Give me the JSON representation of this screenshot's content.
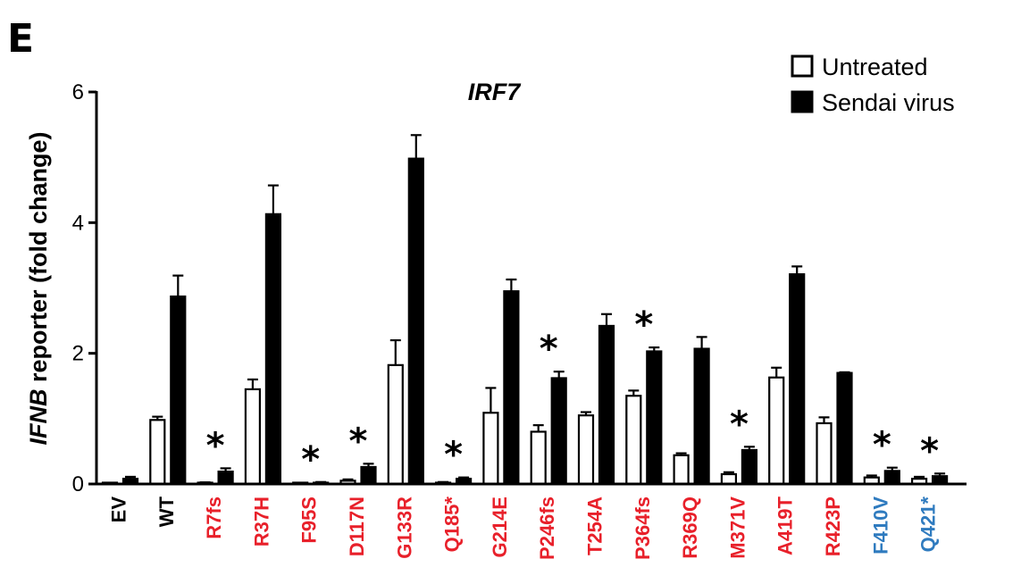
{
  "panel_letter": "E",
  "chart_data": {
    "type": "bar",
    "title": "IRF7",
    "ylabel_italic": "IFNB",
    "ylabel_rest": " reporter (fold change)",
    "ylim": [
      0,
      6
    ],
    "yticks": [
      0,
      2,
      4,
      6
    ],
    "grid": false,
    "legend_position": "top-right",
    "categories": [
      "EV",
      "WT",
      "R7fs",
      "R37H",
      "F95S",
      "D117N",
      "G133R",
      "Q185*",
      "G214E",
      "P246fs",
      "T254A",
      "P364fs",
      "R369Q",
      "M371V",
      "A419T",
      "R423P",
      "F410V",
      "Q421*"
    ],
    "category_colors": [
      "#000000",
      "#000000",
      "#e8202a",
      "#e8202a",
      "#e8202a",
      "#e8202a",
      "#e8202a",
      "#e8202a",
      "#e8202a",
      "#e8202a",
      "#e8202a",
      "#e8202a",
      "#e8202a",
      "#e8202a",
      "#e8202a",
      "#e8202a",
      "#2f7bbf",
      "#2f7bbf"
    ],
    "series": [
      {
        "name": "Untreated",
        "fill": "#ffffff",
        "values": [
          0.01,
          0.98,
          0.02,
          1.45,
          0.01,
          0.05,
          1.82,
          0.02,
          1.09,
          0.8,
          1.05,
          1.35,
          0.44,
          0.15,
          1.63,
          0.93,
          0.1,
          0.08
        ],
        "errors": [
          0.005,
          0.05,
          0.005,
          0.15,
          0.005,
          0.02,
          0.38,
          0.01,
          0.38,
          0.1,
          0.05,
          0.08,
          0.03,
          0.03,
          0.15,
          0.09,
          0.03,
          0.03
        ]
      },
      {
        "name": "Sendai virus",
        "fill": "#000000",
        "values": [
          0.08,
          2.87,
          0.19,
          4.13,
          0.02,
          0.26,
          4.98,
          0.08,
          2.95,
          1.62,
          2.42,
          2.03,
          2.07,
          0.52,
          3.21,
          1.7,
          0.2,
          0.12
        ],
        "errors": [
          0.03,
          0.32,
          0.05,
          0.44,
          0.01,
          0.05,
          0.36,
          0.02,
          0.18,
          0.1,
          0.18,
          0.06,
          0.18,
          0.05,
          0.12,
          0.01,
          0.05,
          0.04
        ]
      }
    ],
    "significance_marks": [
      {
        "category": "R7fs",
        "symbol": "*"
      },
      {
        "category": "F95S",
        "symbol": "*"
      },
      {
        "category": "D117N",
        "symbol": "*"
      },
      {
        "category": "Q185*",
        "symbol": "*"
      },
      {
        "category": "P246fs",
        "symbol": "*"
      },
      {
        "category": "P364fs",
        "symbol": "*"
      },
      {
        "category": "M371V",
        "symbol": "*"
      },
      {
        "category": "F410V",
        "symbol": "*"
      },
      {
        "category": "Q421*",
        "symbol": "*"
      }
    ]
  }
}
